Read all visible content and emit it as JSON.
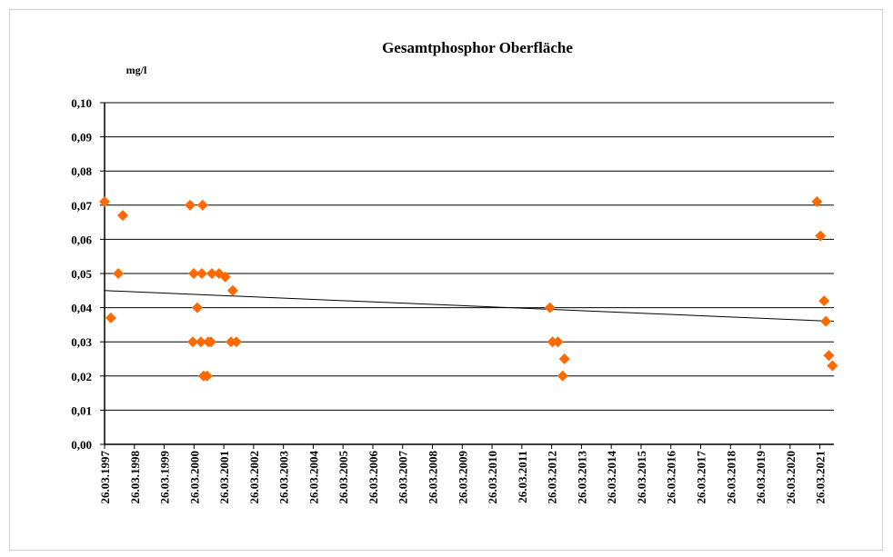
{
  "chart_data": {
    "type": "scatter",
    "title": "Gesamtphosphor  Oberfläche",
    "y_label": "mg/l",
    "series": [
      {
        "color": "#ff6a00",
        "x": [
          1997.23,
          1997.44,
          1997.69,
          1997.84,
          2000.1,
          2000.52,
          2000.22,
          2000.49,
          2000.83,
          2001.07,
          2001.28,
          2001.53,
          2000.34,
          2000.19,
          2000.46,
          2000.71,
          2000.8,
          2001.47,
          2001.65,
          2000.55,
          2000.67,
          2012.17,
          2012.26,
          2012.44,
          2012.66,
          2012.6,
          2021.13,
          2021.25,
          2021.37,
          2021.43,
          2021.53,
          2021.65
        ],
        "values": [
          0.071,
          0.037,
          0.05,
          0.067,
          0.07,
          0.07,
          0.05,
          0.05,
          0.05,
          0.05,
          0.049,
          0.045,
          0.04,
          0.03,
          0.03,
          0.03,
          0.03,
          0.03,
          0.03,
          0.02,
          0.02,
          0.04,
          0.03,
          0.03,
          0.025,
          0.02,
          0.071,
          0.061,
          0.042,
          0.036,
          0.026,
          0.023
        ]
      }
    ],
    "trendline": {
      "x": [
        1997.23,
        2021.7
      ],
      "values": [
        0.045,
        0.036
      ],
      "color": "#000000"
    },
    "xlim": [
      1997.23,
      2021.7
    ],
    "ylim": [
      0,
      0.1
    ],
    "yticks": [
      {
        "value": 0,
        "label": "0,00"
      },
      {
        "value": 0.01,
        "label": "0,01"
      },
      {
        "value": 0.02,
        "label": "0,02"
      },
      {
        "value": 0.03,
        "label": "0,03"
      },
      {
        "value": 0.04,
        "label": "0,04"
      },
      {
        "value": 0.05,
        "label": "0,05"
      },
      {
        "value": 0.06,
        "label": "0,06"
      },
      {
        "value": 0.07,
        "label": "0,07"
      },
      {
        "value": 0.08,
        "label": "0,08"
      },
      {
        "value": 0.09,
        "label": "0,09"
      },
      {
        "value": 0.1,
        "label": "0,10"
      }
    ],
    "xticks": [
      {
        "value": 1997.23,
        "label": "26.03.1997"
      },
      {
        "value": 1998.23,
        "label": "26.03.1998"
      },
      {
        "value": 1999.23,
        "label": "26.03.1999"
      },
      {
        "value": 2000.23,
        "label": "26.03.2000"
      },
      {
        "value": 2001.23,
        "label": "26.03.2001"
      },
      {
        "value": 2002.23,
        "label": "26.03.2002"
      },
      {
        "value": 2003.23,
        "label": "26.03.2003"
      },
      {
        "value": 2004.23,
        "label": "26.03.2004"
      },
      {
        "value": 2005.23,
        "label": "26.03.2005"
      },
      {
        "value": 2006.23,
        "label": "26.03.2006"
      },
      {
        "value": 2007.23,
        "label": "26.03.2007"
      },
      {
        "value": 2008.23,
        "label": "26.03.2008"
      },
      {
        "value": 2009.23,
        "label": "26.03.2009"
      },
      {
        "value": 2010.23,
        "label": "26.03.2010"
      },
      {
        "value": 2011.23,
        "label": "26.03.2011"
      },
      {
        "value": 2012.23,
        "label": "26.03.2012"
      },
      {
        "value": 2013.23,
        "label": "26.03.2013"
      },
      {
        "value": 2014.23,
        "label": "26.03.2014"
      },
      {
        "value": 2015.23,
        "label": "26.03.2015"
      },
      {
        "value": 2016.23,
        "label": "26.03.2016"
      },
      {
        "value": 2017.23,
        "label": "26.03.2017"
      },
      {
        "value": 2018.23,
        "label": "26.03.2018"
      },
      {
        "value": 2019.23,
        "label": "26.03.2019"
      },
      {
        "value": 2020.23,
        "label": "26.03.2020"
      },
      {
        "value": 2021.23,
        "label": "26.03.2021"
      }
    ],
    "grid": true
  }
}
